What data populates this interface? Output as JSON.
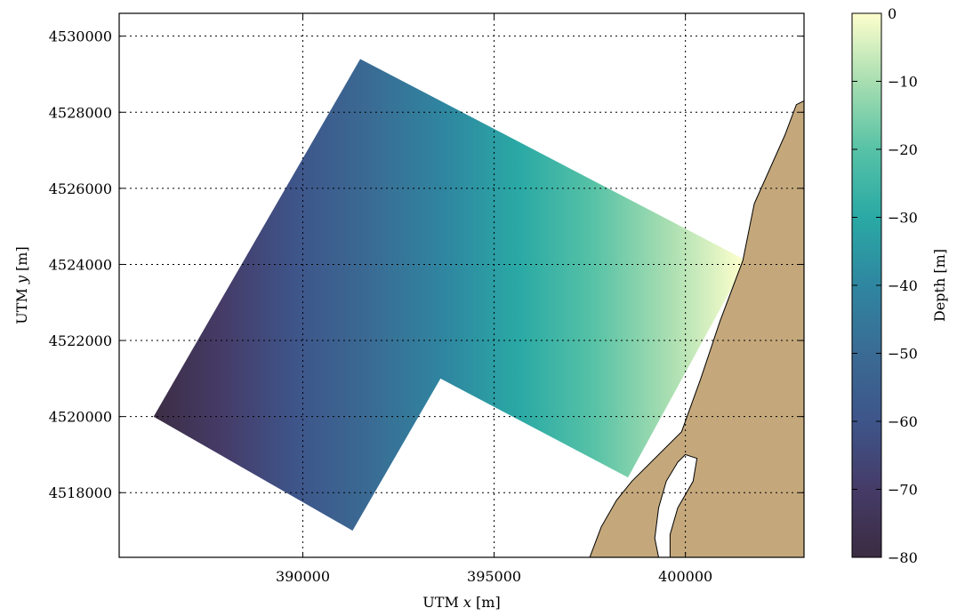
{
  "chart_data": {
    "type": "heatmap",
    "xlabel_prefix": "UTM ",
    "xlabel_var": "x",
    "xlabel_unit": " [m]",
    "ylabel_prefix": "UTM ",
    "ylabel_var": "y",
    "ylabel_unit": " [m]",
    "xlim": [
      385200,
      403100
    ],
    "ylim": [
      4516300,
      4530600
    ],
    "x_ticks": [
      390000,
      395000,
      400000
    ],
    "y_ticks": [
      4518000,
      4520000,
      4522000,
      4524000,
      4526000,
      4528000,
      4530000
    ],
    "grid": true,
    "grid_style": "dotted",
    "survey_polygon": [
      [
        386100,
        4520000
      ],
      [
        391500,
        4529400
      ],
      [
        401600,
        4524100
      ],
      [
        398500,
        4518400
      ],
      [
        393600,
        4521000
      ],
      [
        391300,
        4517000
      ]
    ],
    "depth_along_gradient": {
      "direction": "west-to-east",
      "start_depth": -80,
      "end_depth": 0
    },
    "land_polygon": [
      [
        403100,
        4528300
      ],
      [
        402900,
        4528200
      ],
      [
        402600,
        4527400
      ],
      [
        401800,
        4525600
      ],
      [
        401500,
        4524100
      ],
      [
        400900,
        4522500
      ],
      [
        400400,
        4521000
      ],
      [
        399900,
        4519600
      ],
      [
        398600,
        4518300
      ],
      [
        398200,
        4517800
      ],
      [
        397800,
        4517100
      ],
      [
        397500,
        4516300
      ],
      [
        403100,
        4516300
      ]
    ],
    "lagoon_polygon": [
      [
        399800,
        4518800
      ],
      [
        400000,
        4519000
      ],
      [
        400300,
        4518900
      ],
      [
        400200,
        4518300
      ],
      [
        399800,
        4517600
      ],
      [
        399600,
        4516900
      ],
      [
        399600,
        4516300
      ],
      [
        399300,
        4516300
      ],
      [
        399200,
        4516800
      ],
      [
        399300,
        4517600
      ],
      [
        399500,
        4518300
      ]
    ],
    "land_color": "#c4a87c",
    "colorbar": {
      "label": "Depth [m]",
      "vmin": -80,
      "vmax": 0,
      "ticks": [
        0,
        -10,
        -20,
        -30,
        -40,
        -50,
        -60,
        -70,
        -80
      ],
      "colormap": "deep",
      "stops": [
        [
          "#3b2c41",
          0.0
        ],
        [
          "#453b67",
          0.125
        ],
        [
          "#3e558a",
          0.25
        ],
        [
          "#3a6b94",
          0.375
        ],
        [
          "#2f86a0",
          0.5
        ],
        [
          "#2aa9a5",
          0.625
        ],
        [
          "#57c2a6",
          0.75
        ],
        [
          "#a8deb1",
          0.875
        ],
        [
          "#fdfecc",
          1.0
        ]
      ]
    }
  }
}
